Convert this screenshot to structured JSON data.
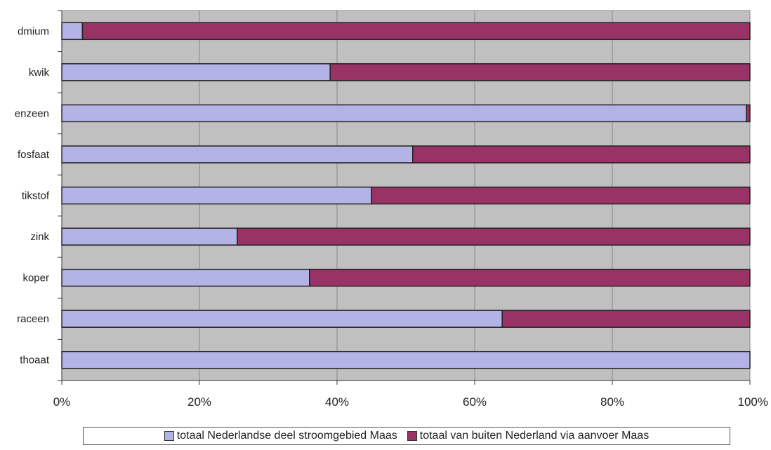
{
  "chart_data": {
    "type": "bar",
    "orientation": "horizontal",
    "stacked": true,
    "percent": true,
    "categories": [
      "dmium",
      "kwik",
      "enzeen",
      "fosfaat",
      "tikstof",
      "zink",
      "koper",
      "raceen",
      "thoaat"
    ],
    "series": [
      {
        "name": "totaal Nederlandse deel stroomgebied Maas",
        "color": "#b3b3e6",
        "values": [
          3,
          39,
          99.5,
          51,
          45,
          25.5,
          36,
          64,
          100
        ]
      },
      {
        "name": "totaal van buiten Nederland via aanvoer Maas",
        "color": "#993366",
        "values": [
          97,
          61,
          0.5,
          49,
          55,
          74.5,
          64,
          36,
          0
        ]
      }
    ],
    "xlim": [
      0,
      100
    ],
    "xticks": [
      "0%",
      "20%",
      "40%",
      "60%",
      "80%",
      "100%"
    ],
    "grid": true,
    "plot_background": "#c0c0c0",
    "legend_position": "bottom"
  }
}
